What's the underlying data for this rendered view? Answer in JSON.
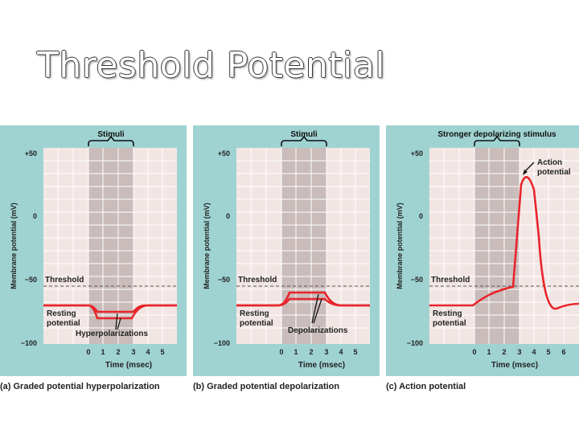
{
  "slide_title": "Threshold Potential",
  "colors": {
    "panel_bg": "#9fd3d2",
    "grid_bg": "#f2e6e4",
    "stim_band": "#c9bcbb",
    "trace": "#e8252b"
  },
  "panels": [
    {
      "id": "a",
      "bracket_label": "Stimuli",
      "ylabel": "Membrane potential (mV)",
      "xlabel": "Time (msec)",
      "y_ticks": [
        "+50",
        "0",
        "−50",
        "−100"
      ],
      "x_ticks": [
        "0",
        "1",
        "2",
        "3",
        "4",
        "5"
      ],
      "threshold_label": "Threshold",
      "resting_label_1": "Resting",
      "resting_label_2": "potential",
      "event_label": "Hyperpolarizations",
      "caption": "(a) Graded potential hyperpolarization"
    },
    {
      "id": "b",
      "bracket_label": "Stimuli",
      "ylabel": "Membrane potential (mV)",
      "xlabel": "Time (msec)",
      "y_ticks": [
        "+50",
        "0",
        "−50",
        "−100"
      ],
      "x_ticks": [
        "0",
        "1",
        "2",
        "3",
        "4",
        "5"
      ],
      "threshold_label": "Threshold",
      "resting_label_1": "Resting",
      "resting_label_2": "potential",
      "event_label": "Depolarizations",
      "caption": "(b) Graded potential depolarization"
    },
    {
      "id": "c",
      "bracket_label": "Stronger depolarizing stimulus",
      "ylabel": "Membrane potential (mV)",
      "xlabel": "Time (msec)",
      "y_ticks": [
        "+50",
        "0",
        "−50",
        "−100"
      ],
      "x_ticks": [
        "0",
        "1",
        "2",
        "3",
        "4",
        "5",
        "6"
      ],
      "threshold_label": "Threshold",
      "resting_label_1": "Resting",
      "resting_label_2": "potential",
      "event_label_1": "Action",
      "event_label_2": "potential",
      "caption": "(c) Action potential"
    }
  ]
}
